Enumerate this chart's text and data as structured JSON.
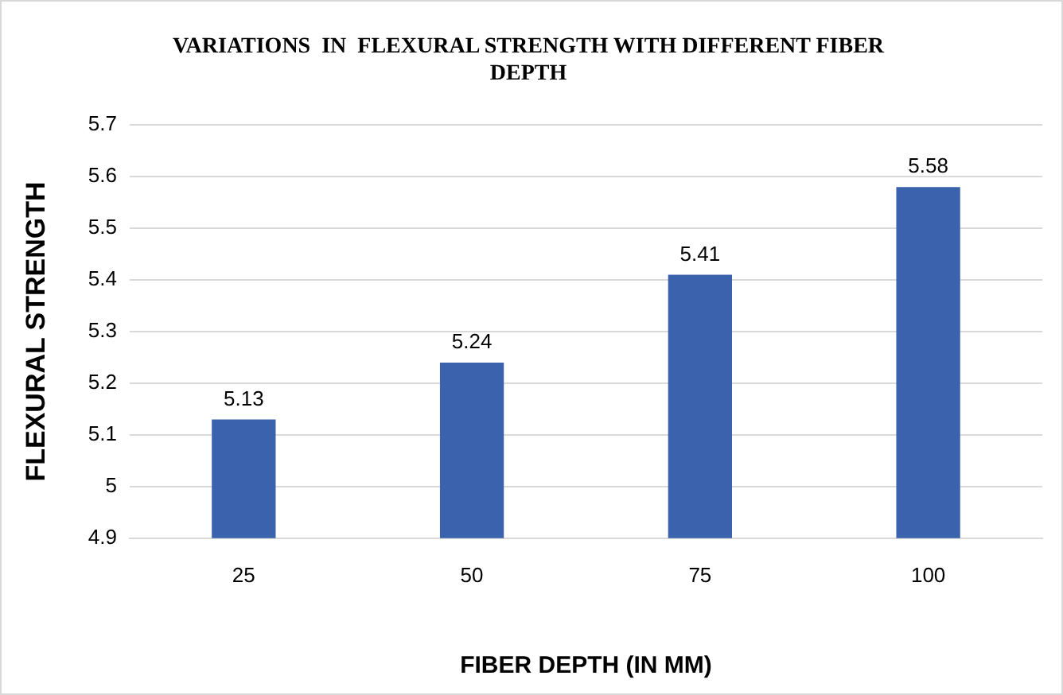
{
  "chart_data": {
    "type": "bar",
    "title": "VARIATIONS  IN  FLEXURAL STRENGTH WITH DIFFERENT FIBER DEPTH",
    "xlabel": "FIBER DEPTH (IN MM)",
    "ylabel": "FLEXURAL STRENGTH",
    "categories": [
      "25",
      "50",
      "75",
      "100"
    ],
    "values": [
      5.13,
      5.24,
      5.41,
      5.58
    ],
    "color": "#3a62ad",
    "ylim": [
      4.9,
      5.7
    ],
    "yticks": [
      4.9,
      5,
      5.1,
      5.2,
      5.3,
      5.4,
      5.5,
      5.6,
      5.7
    ],
    "grid": "y",
    "data_labels": true
  }
}
